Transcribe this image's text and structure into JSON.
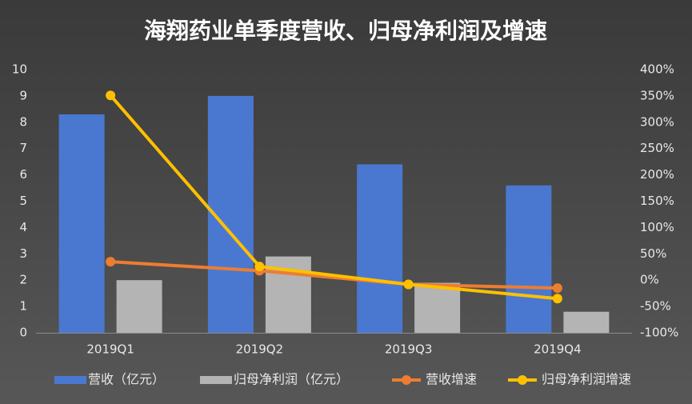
{
  "chart_data": {
    "type": "bar",
    "title": "海翔药业单季度营收、归母净利润及增速",
    "categories": [
      "2019Q1",
      "2019Q2",
      "2019Q3",
      "2019Q4"
    ],
    "series": [
      {
        "name": "营收（亿元）",
        "color": "#4a78d0",
        "type": "bar",
        "values": [
          8.3,
          9.0,
          6.4,
          5.6
        ]
      },
      {
        "name": "归母净利润（亿元）",
        "color": "#b4b4b4",
        "type": "bar",
        "values": [
          2.0,
          2.9,
          1.9,
          0.8
        ]
      },
      {
        "name": "营收增速",
        "color": "#ed7d31",
        "type": "line",
        "axis": "y2",
        "values": [
          35,
          18,
          -8,
          -15
        ]
      },
      {
        "name": "归母净利润增速",
        "color": "#ffc000",
        "type": "line",
        "axis": "y2",
        "values": [
          351,
          26,
          -8,
          -35
        ]
      }
    ],
    "ylim": [
      0,
      10
    ],
    "yticks": [
      0,
      1,
      2,
      3,
      4,
      5,
      6,
      7,
      8,
      9,
      10
    ],
    "y2lim": [
      -100,
      400
    ],
    "y2ticks": [
      {
        "value": -100,
        "label": "-100%"
      },
      {
        "value": -50,
        "label": "-50%"
      },
      {
        "value": 0,
        "label": "0%"
      },
      {
        "value": 50,
        "label": "50%"
      },
      {
        "value": 100,
        "label": "100%"
      },
      {
        "value": 150,
        "label": "150%"
      },
      {
        "value": 200,
        "label": "200%"
      },
      {
        "value": 250,
        "label": "250%"
      },
      {
        "value": 300,
        "label": "300%"
      },
      {
        "value": 350,
        "label": "350%"
      },
      {
        "value": 400,
        "label": "400%"
      }
    ],
    "grid": false,
    "legend": "bottom"
  }
}
